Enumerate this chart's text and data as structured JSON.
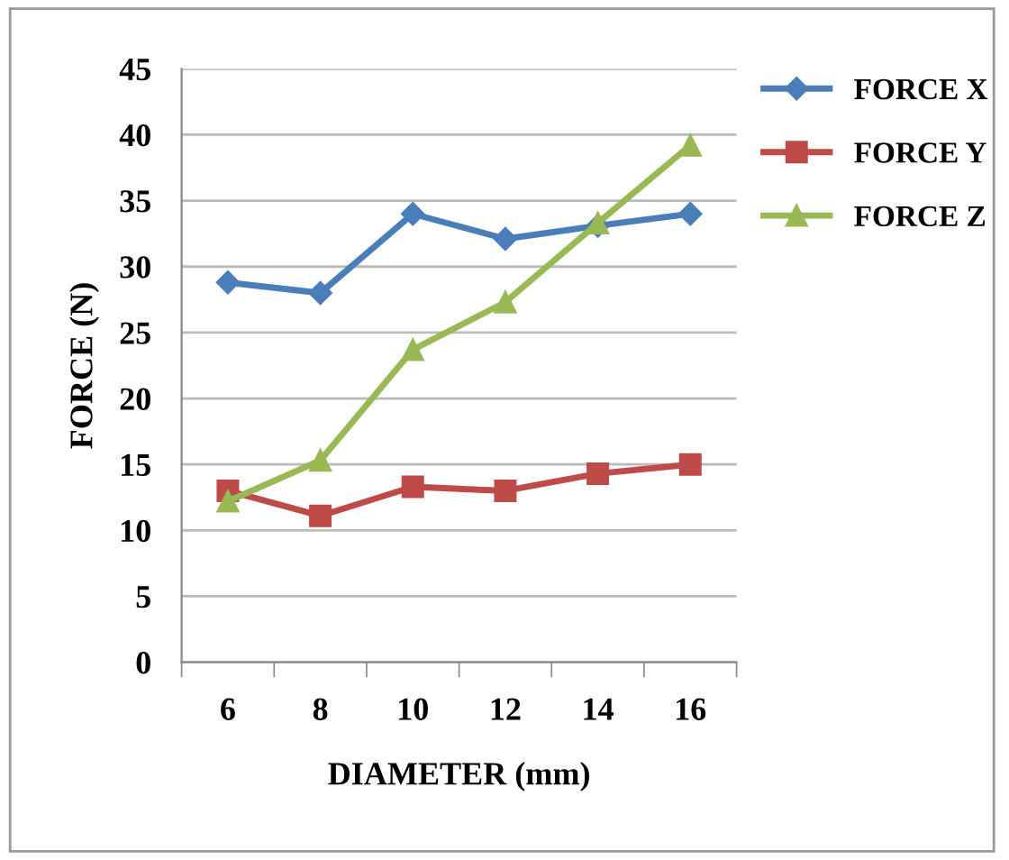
{
  "chart_data": {
    "type": "line",
    "xlabel": "DIAMETER (mm)",
    "ylabel": "FORCE (N)",
    "categories": [
      "6",
      "8",
      "10",
      "12",
      "14",
      "16"
    ],
    "series": [
      {
        "name": "FORCE X",
        "color": "#4a7ebb",
        "marker": "diamond",
        "values": [
          28.8,
          28.0,
          34.0,
          32.1,
          33.1,
          34.0
        ]
      },
      {
        "name": "FORCE Y",
        "color": "#be4b48",
        "marker": "square",
        "values": [
          13.0,
          11.1,
          13.3,
          13.0,
          14.3,
          15.0
        ]
      },
      {
        "name": "FORCE Z",
        "color": "#98b954",
        "marker": "triangle",
        "values": [
          12.2,
          15.3,
          23.7,
          27.3,
          33.3,
          39.2
        ]
      }
    ],
    "ylim": [
      0,
      45
    ],
    "yticks": [
      0,
      5,
      10,
      15,
      20,
      25,
      30,
      35,
      40,
      45
    ],
    "grid": "y",
    "legend": "top right",
    "line_style": "solid"
  }
}
